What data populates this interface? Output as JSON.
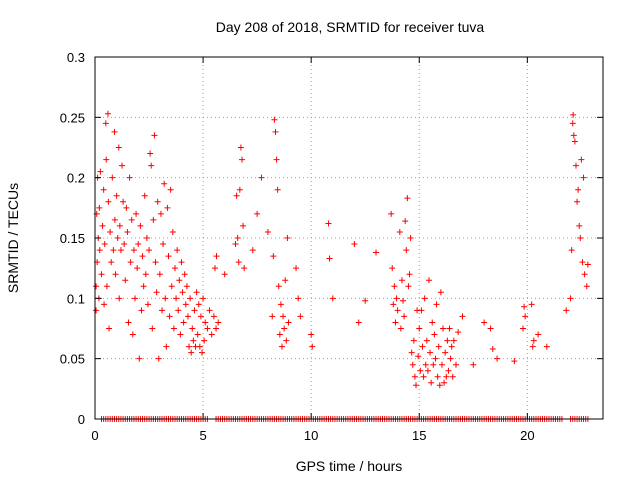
{
  "chart_data": {
    "type": "scatter",
    "title": "Day 208 of 2018, SRMTID for receiver tuva",
    "xlabel": "GPS time / hours",
    "ylabel": "SRMTID / TECUs",
    "xlim": [
      0,
      23.5
    ],
    "ylim": [
      0,
      0.3
    ],
    "x_ticks": [
      "0",
      "5",
      "10",
      "15",
      "20"
    ],
    "y_ticks": [
      "0",
      "0.05",
      "0.1",
      "0.15",
      "0.2",
      "0.25",
      "0.3"
    ],
    "grid": true,
    "legend": "none",
    "marker": "plus",
    "color": "#ff0000",
    "series": [
      {
        "values": [
          [
            0.05,
            0.09
          ],
          [
            0.05,
            0.11
          ],
          [
            0.08,
            0.17
          ],
          [
            0.1,
            0.13
          ],
          [
            0.12,
            0.2
          ],
          [
            0.15,
            0.15
          ],
          [
            0.18,
            0.1
          ],
          [
            0.2,
            0.175
          ],
          [
            0.22,
            0.14
          ],
          [
            0.25,
            0.205
          ],
          [
            0.3,
            0.12
          ],
          [
            0.35,
            0.16
          ],
          [
            0.4,
            0.19
          ],
          [
            0.42,
            0.095
          ],
          [
            0.45,
            0.145
          ],
          [
            0.5,
            0.245
          ],
          [
            0.52,
            0.215
          ],
          [
            0.55,
            0.11
          ],
          [
            0.6,
            0.253
          ],
          [
            0.62,
            0.18
          ],
          [
            0.65,
            0.075
          ],
          [
            0.7,
            0.155
          ],
          [
            0.75,
            0.13
          ],
          [
            0.8,
            0.2
          ],
          [
            0.85,
            0.14
          ],
          [
            0.9,
            0.238
          ],
          [
            0.92,
            0.165
          ],
          [
            0.95,
            0.12
          ],
          [
            1.0,
            0.185
          ],
          [
            1.05,
            0.15
          ],
          [
            1.1,
            0.225
          ],
          [
            1.12,
            0.1
          ],
          [
            1.15,
            0.16
          ],
          [
            1.2,
            0.14
          ],
          [
            1.25,
            0.21
          ],
          [
            1.3,
            0.18
          ],
          [
            1.35,
            0.145
          ],
          [
            1.4,
            0.115
          ],
          [
            1.45,
            0.175
          ],
          [
            1.5,
            0.155
          ],
          [
            1.55,
            0.08
          ],
          [
            1.6,
            0.2
          ],
          [
            1.65,
            0.13
          ],
          [
            1.7,
            0.165
          ],
          [
            1.75,
            0.07
          ],
          [
            1.8,
            0.14
          ],
          [
            1.85,
            0.1
          ],
          [
            1.9,
            0.17
          ],
          [
            1.95,
            0.125
          ],
          [
            2.0,
            0.145
          ],
          [
            2.05,
            0.05
          ],
          [
            2.1,
            0.16
          ],
          [
            2.15,
            0.09
          ],
          [
            2.2,
            0.135
          ],
          [
            2.25,
            0.11
          ],
          [
            2.3,
            0.185
          ],
          [
            2.35,
            0.12
          ],
          [
            2.4,
            0.15
          ],
          [
            2.45,
            0.095
          ],
          [
            2.5,
            0.14
          ],
          [
            2.55,
            0.22
          ],
          [
            2.6,
            0.21
          ],
          [
            2.65,
            0.075
          ],
          [
            2.7,
            0.165
          ],
          [
            2.75,
            0.235
          ],
          [
            2.8,
            0.13
          ],
          [
            2.85,
            0.105
          ],
          [
            2.9,
            0.18
          ],
          [
            2.95,
            0.05
          ],
          [
            3.0,
            0.12
          ],
          [
            3.05,
            0.17
          ],
          [
            3.1,
            0.09
          ],
          [
            3.15,
            0.145
          ],
          [
            3.2,
            0.195
          ],
          [
            3.25,
            0.1
          ],
          [
            3.3,
            0.06
          ],
          [
            3.35,
            0.175
          ],
          [
            3.4,
            0.135
          ],
          [
            3.45,
            0.085
          ],
          [
            3.5,
            0.19
          ],
          [
            3.55,
            0.11
          ],
          [
            3.6,
            0.155
          ],
          [
            3.65,
            0.075
          ],
          [
            3.7,
            0.125
          ],
          [
            3.75,
            0.1
          ],
          [
            3.8,
            0.14
          ],
          [
            3.85,
            0.09
          ],
          [
            3.9,
            0.115
          ],
          [
            3.95,
            0.07
          ],
          [
            4.0,
            0.13
          ],
          [
            4.05,
            0.105
          ],
          [
            4.1,
            0.08
          ],
          [
            4.15,
            0.12
          ],
          [
            4.2,
            0.095
          ],
          [
            4.25,
            0.11
          ],
          [
            4.3,
            0.085
          ],
          [
            4.35,
            0.06
          ],
          [
            4.4,
            0.1
          ],
          [
            4.45,
            0.055
          ],
          [
            4.5,
            0.075
          ],
          [
            4.55,
            0.065
          ],
          [
            4.6,
            0.09
          ],
          [
            4.65,
            0.06
          ],
          [
            4.7,
            0.105
          ],
          [
            4.75,
            0.07
          ],
          [
            4.8,
            0.095
          ],
          [
            4.85,
            0.06
          ],
          [
            4.9,
            0.085
          ],
          [
            4.95,
            0.055
          ],
          [
            5.0,
            0.1
          ],
          [
            5.05,
            0.065
          ],
          [
            5.1,
            0.08
          ],
          [
            5.2,
            0.075
          ],
          [
            5.3,
            0.09
          ],
          [
            5.4,
            0.07
          ],
          [
            5.5,
            0.085
          ],
          [
            5.55,
            0.125
          ],
          [
            5.6,
            0.075
          ],
          [
            5.62,
            0.135
          ],
          [
            5.7,
            0.08
          ],
          [
            6.0,
            0.12
          ],
          [
            6.5,
            0.145
          ],
          [
            6.55,
            0.185
          ],
          [
            6.6,
            0.15
          ],
          [
            6.65,
            0.13
          ],
          [
            6.7,
            0.19
          ],
          [
            6.75,
            0.225
          ],
          [
            6.8,
            0.215
          ],
          [
            6.85,
            0.16
          ],
          [
            6.9,
            0.125
          ],
          [
            7.3,
            0.14
          ],
          [
            7.5,
            0.17
          ],
          [
            7.7,
            0.2
          ],
          [
            8.0,
            0.155
          ],
          [
            8.2,
            0.085
          ],
          [
            8.25,
            0.135
          ],
          [
            8.3,
            0.248
          ],
          [
            8.35,
            0.238
          ],
          [
            8.4,
            0.215
          ],
          [
            8.45,
            0.19
          ],
          [
            8.5,
            0.11
          ],
          [
            8.55,
            0.07
          ],
          [
            8.6,
            0.095
          ],
          [
            8.65,
            0.06
          ],
          [
            8.7,
            0.085
          ],
          [
            8.75,
            0.075
          ],
          [
            8.8,
            0.115
          ],
          [
            8.85,
            0.065
          ],
          [
            8.9,
            0.15
          ],
          [
            8.95,
            0.08
          ],
          [
            9.3,
            0.125
          ],
          [
            9.4,
            0.1
          ],
          [
            9.5,
            0.085
          ],
          [
            10.0,
            0.07
          ],
          [
            10.05,
            0.06
          ],
          [
            10.8,
            0.162
          ],
          [
            10.85,
            0.133
          ],
          [
            11.0,
            0.1
          ],
          [
            12.0,
            0.145
          ],
          [
            12.2,
            0.08
          ],
          [
            12.5,
            0.098
          ],
          [
            13.0,
            0.138
          ],
          [
            13.7,
            0.17
          ],
          [
            13.75,
            0.125
          ],
          [
            13.8,
            0.095
          ],
          [
            13.85,
            0.11
          ],
          [
            13.9,
            0.08
          ],
          [
            13.95,
            0.1
          ],
          [
            14.0,
            0.09
          ],
          [
            14.1,
            0.155
          ],
          [
            14.15,
            0.075
          ],
          [
            14.2,
            0.115
          ],
          [
            14.25,
            0.098
          ],
          [
            14.3,
            0.085
          ],
          [
            14.35,
            0.164
          ],
          [
            14.4,
            0.14
          ],
          [
            14.45,
            0.183
          ],
          [
            14.5,
            0.11
          ],
          [
            14.55,
            0.12
          ],
          [
            14.6,
            0.15
          ],
          [
            14.65,
            0.055
          ],
          [
            14.7,
            0.045
          ],
          [
            14.75,
            0.065
          ],
          [
            14.8,
            0.035
          ],
          [
            14.85,
            0.028
          ],
          [
            14.9,
            0.09
          ],
          [
            14.95,
            0.052
          ],
          [
            15.0,
            0.075
          ],
          [
            15.05,
            0.04
          ],
          [
            15.1,
            0.09
          ],
          [
            15.15,
            0.06
          ],
          [
            15.2,
            0.035
          ],
          [
            15.25,
            0.1
          ],
          [
            15.3,
            0.045
          ],
          [
            15.35,
            0.065
          ],
          [
            15.4,
            0.04
          ],
          [
            15.45,
            0.115
          ],
          [
            15.5,
            0.055
          ],
          [
            15.55,
            0.03
          ],
          [
            15.6,
            0.08
          ],
          [
            15.65,
            0.045
          ],
          [
            15.7,
            0.07
          ],
          [
            15.75,
            0.05
          ],
          [
            15.8,
            0.095
          ],
          [
            15.85,
            0.035
          ],
          [
            15.9,
            0.06
          ],
          [
            15.95,
            0.028
          ],
          [
            16.0,
            0.105
          ],
          [
            16.05,
            0.045
          ],
          [
            16.1,
            0.075
          ],
          [
            16.15,
            0.03
          ],
          [
            16.2,
            0.055
          ],
          [
            16.25,
            0.035
          ],
          [
            16.3,
            0.065
          ],
          [
            16.35,
            0.04
          ],
          [
            16.4,
            0.075
          ],
          [
            16.45,
            0.05
          ],
          [
            16.5,
            0.06
          ],
          [
            16.55,
            0.035
          ],
          [
            16.6,
            0.065
          ],
          [
            16.7,
            0.045
          ],
          [
            16.8,
            0.072
          ],
          [
            17.0,
            0.085
          ],
          [
            17.5,
            0.045
          ],
          [
            18.0,
            0.08
          ],
          [
            18.3,
            0.075
          ],
          [
            18.4,
            0.058
          ],
          [
            18.6,
            0.05
          ],
          [
            19.4,
            0.048
          ],
          [
            19.8,
            0.075
          ],
          [
            19.85,
            0.093
          ],
          [
            19.9,
            0.085
          ],
          [
            20.2,
            0.095
          ],
          [
            20.25,
            0.06
          ],
          [
            20.3,
            0.065
          ],
          [
            20.5,
            0.07
          ],
          [
            20.9,
            0.06
          ],
          [
            21.8,
            0.09
          ],
          [
            22.0,
            0.1
          ],
          [
            22.05,
            0.14
          ],
          [
            22.1,
            0.245
          ],
          [
            22.12,
            0.252
          ],
          [
            22.15,
            0.235
          ],
          [
            22.2,
            0.23
          ],
          [
            22.25,
            0.21
          ],
          [
            22.3,
            0.18
          ],
          [
            22.35,
            0.19
          ],
          [
            22.4,
            0.16
          ],
          [
            22.45,
            0.15
          ],
          [
            22.5,
            0.215
          ],
          [
            22.55,
            0.13
          ],
          [
            22.6,
            0.2
          ],
          [
            22.65,
            0.12
          ],
          [
            22.75,
            0.11
          ],
          [
            22.8,
            0.128
          ]
        ]
      }
    ],
    "baseline_zero_points": {
      "y": 0,
      "x_ranges": [
        [
          0.3,
          5.2
        ],
        [
          5.6,
          21.6
        ],
        [
          22.0,
          22.8
        ]
      ]
    }
  }
}
